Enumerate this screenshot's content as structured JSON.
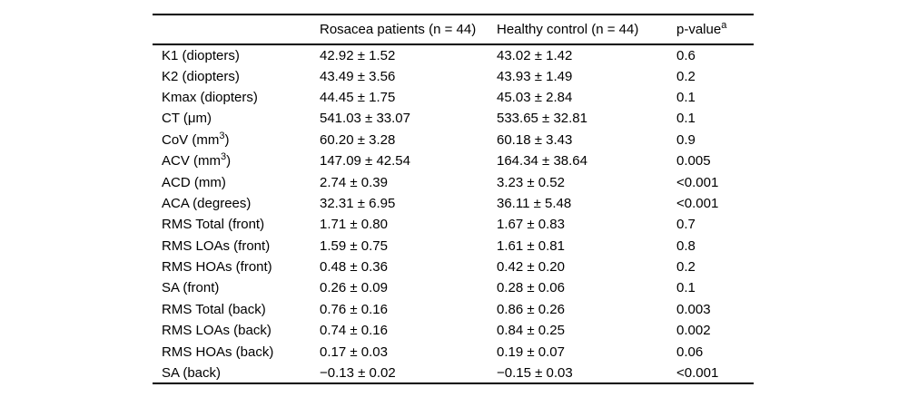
{
  "colors": {
    "background": "#ffffff",
    "text": "#000000",
    "rule": "#000000"
  },
  "table": {
    "columns": [
      {
        "label": ""
      },
      {
        "label": "Rosacea patients (n = 44)"
      },
      {
        "label": "Healthy control (n = 44)"
      },
      {
        "label": "p-value^a^"
      }
    ],
    "rows": [
      {
        "label": "K1 (diopters)",
        "rosacea": "42.92 ± 1.52",
        "control": "43.02 ± 1.42",
        "p": "0.6"
      },
      {
        "label": "K2 (diopters)",
        "rosacea": "43.49 ± 3.56",
        "control": "43.93 ± 1.49",
        "p": "0.2"
      },
      {
        "label": "Kmax (diopters)",
        "rosacea": "44.45 ± 1.75",
        "control": "45.03 ± 2.84",
        "p": "0.1"
      },
      {
        "label": "CT (μm)",
        "rosacea": "541.03 ± 33.07",
        "control": "533.65 ± 32.81",
        "p": "0.1"
      },
      {
        "label": "CoV (mm^3^)",
        "rosacea": "60.20 ± 3.28",
        "control": "60.18 ± 3.43",
        "p": "0.9"
      },
      {
        "label": "ACV (mm^3^)",
        "rosacea": "147.09 ± 42.54",
        "control": "164.34 ± 38.64",
        "p": "0.005"
      },
      {
        "label": "ACD (mm)",
        "rosacea": "2.74 ± 0.39",
        "control": "3.23 ± 0.52",
        "p": "<0.001"
      },
      {
        "label": "ACA (degrees)",
        "rosacea": "32.31 ± 6.95",
        "control": "36.11 ± 5.48",
        "p": "<0.001"
      },
      {
        "label": "RMS Total (front)",
        "rosacea": "1.71 ± 0.80",
        "control": "1.67 ± 0.83",
        "p": "0.7"
      },
      {
        "label": "RMS LOAs (front)",
        "rosacea": "1.59 ± 0.75",
        "control": "1.61 ± 0.81",
        "p": "0.8"
      },
      {
        "label": "RMS HOAs (front)",
        "rosacea": "0.48 ± 0.36",
        "control": "0.42 ± 0.20",
        "p": "0.2"
      },
      {
        "label": "SA (front)",
        "rosacea": "0.26 ± 0.09",
        "control": "0.28 ± 0.06",
        "p": "0.1"
      },
      {
        "label": "RMS Total (back)",
        "rosacea": "0.76 ± 0.16",
        "control": "0.86 ± 0.26",
        "p": "0.003"
      },
      {
        "label": "RMS LOAs (back)",
        "rosacea": "0.74 ± 0.16",
        "control": "0.84 ± 0.25",
        "p": "0.002"
      },
      {
        "label": "RMS HOAs (back)",
        "rosacea": "0.17 ± 0.03",
        "control": "0.19 ± 0.07",
        "p": "0.06"
      },
      {
        "label": "SA (back)",
        "rosacea": "−0.13 ± 0.02",
        "control": "−0.15 ± 0.03",
        "p": "<0.001"
      }
    ]
  }
}
